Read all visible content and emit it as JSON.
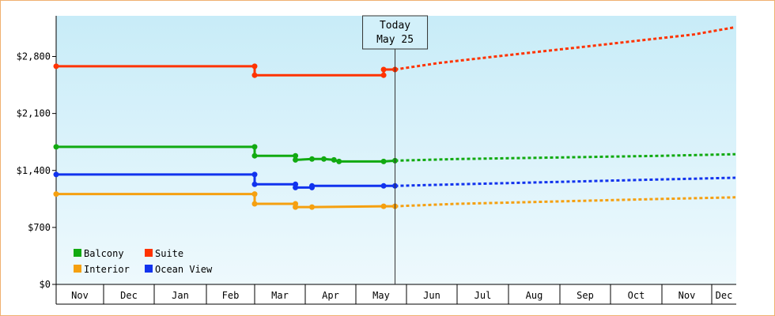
{
  "chart_data": {
    "type": "line",
    "y_ticks": [
      "$0",
      "$700",
      "$1,400",
      "$2,100",
      "$2,800"
    ],
    "ylim": [
      0,
      3300
    ],
    "months": [
      "Nov",
      "Dec",
      "Jan",
      "Feb",
      "Mar",
      "Apr",
      "May",
      "Jun",
      "Jul",
      "Aug",
      "Sep",
      "Oct",
      "Nov",
      "Dec"
    ],
    "today": {
      "line1": "Today",
      "line2": "May 25"
    },
    "grid": true,
    "legend_position": "bottom-left",
    "series": [
      {
        "name": "Suite",
        "color": "#ff3300",
        "observed": [
          [
            "Nov 1",
            2680
          ],
          [
            "Mar 1",
            2680
          ],
          [
            "Mar 1",
            2570
          ],
          [
            "May 18",
            2570
          ],
          [
            "May 18",
            2640
          ],
          [
            "May 25",
            2640
          ]
        ],
        "forecast": [
          [
            "May 25",
            2640
          ],
          [
            "Jun 20",
            2720
          ],
          [
            "Jul 20",
            2790
          ],
          [
            "Aug 20",
            2860
          ],
          [
            "Sep 20",
            2930
          ],
          [
            "Oct 20",
            3000
          ],
          [
            "Nov 20",
            3070
          ],
          [
            "Dec 31",
            3160
          ]
        ]
      },
      {
        "name": "Balcony",
        "color": "#11aa11",
        "observed": [
          [
            "Nov 1",
            1690
          ],
          [
            "Mar 1",
            1690
          ],
          [
            "Mar 1",
            1580
          ],
          [
            "Mar 26",
            1580
          ],
          [
            "Mar 26",
            1530
          ],
          [
            "Apr 5",
            1540
          ],
          [
            "Apr 12",
            1540
          ],
          [
            "Apr 18",
            1530
          ],
          [
            "Apr 21",
            1510
          ],
          [
            "May 18",
            1510
          ],
          [
            "May 25",
            1520
          ]
        ],
        "forecast": [
          [
            "May 25",
            1520
          ],
          [
            "Jul 1",
            1540
          ],
          [
            "Sep 1",
            1560
          ],
          [
            "Nov 1",
            1580
          ],
          [
            "Dec 31",
            1600
          ]
        ]
      },
      {
        "name": "Ocean View",
        "color": "#1133ee",
        "observed": [
          [
            "Nov 1",
            1350
          ],
          [
            "Mar 1",
            1350
          ],
          [
            "Mar 1",
            1230
          ],
          [
            "Mar 26",
            1230
          ],
          [
            "Mar 26",
            1190
          ],
          [
            "Apr 5",
            1190
          ],
          [
            "Apr 5",
            1210
          ],
          [
            "May 18",
            1210
          ],
          [
            "May 25",
            1210
          ]
        ],
        "forecast": [
          [
            "May 25",
            1210
          ],
          [
            "Jul 1",
            1230
          ],
          [
            "Sep 1",
            1260
          ],
          [
            "Nov 1",
            1290
          ],
          [
            "Dec 31",
            1310
          ]
        ]
      },
      {
        "name": "Interior",
        "color": "#f5a010",
        "observed": [
          [
            "Nov 1",
            1110
          ],
          [
            "Mar 1",
            1110
          ],
          [
            "Mar 1",
            990
          ],
          [
            "Mar 26",
            990
          ],
          [
            "Mar 26",
            950
          ],
          [
            "Apr 5",
            950
          ],
          [
            "May 18",
            960
          ],
          [
            "May 25",
            960
          ]
        ],
        "forecast": [
          [
            "May 25",
            960
          ],
          [
            "Jul 1",
            990
          ],
          [
            "Sep 1",
            1020
          ],
          [
            "Nov 1",
            1050
          ],
          [
            "Dec 31",
            1070
          ]
        ]
      }
    ],
    "legend": [
      "Balcony",
      "Suite",
      "Interior",
      "Ocean View"
    ]
  }
}
